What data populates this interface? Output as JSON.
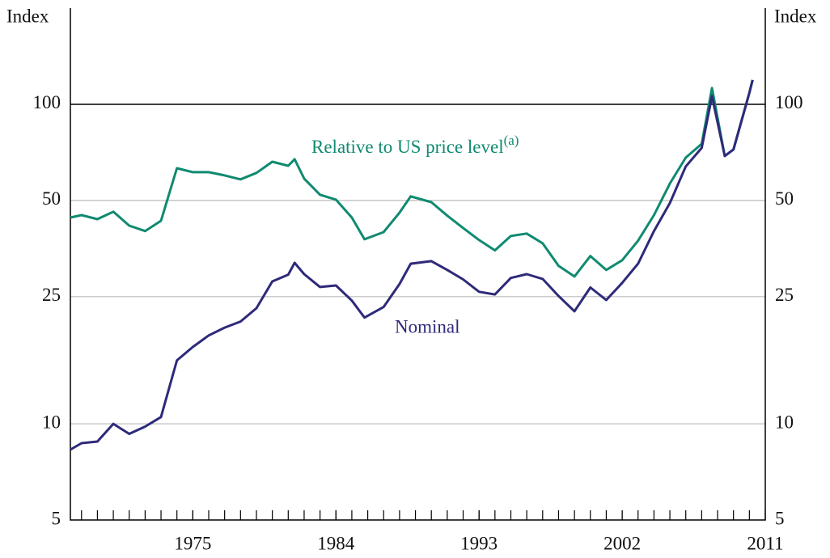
{
  "chart_data": {
    "type": "line",
    "y_axis_label": "Index",
    "y2_axis_label": "Index",
    "annotations": [
      {
        "text": "Relative to US price level",
        "superscript": "(a)"
      },
      {
        "text": "Nominal"
      }
    ],
    "x": [
      1967.3,
      1968,
      1969,
      1970,
      1971,
      1972,
      1973,
      1974,
      1975,
      1976,
      1977,
      1978,
      1979,
      1980,
      1981,
      1981.4,
      1982,
      1983,
      1984,
      1985,
      1985.8,
      1987,
      1988,
      1988.7,
      1990,
      1991,
      1992,
      1993,
      1994,
      1995,
      1996,
      1997,
      1998,
      1999,
      2000,
      2001,
      2002,
      2003,
      2004,
      2005,
      2006,
      2007,
      2007.65,
      2008.45,
      2009,
      2010,
      2010.2
    ],
    "series": [
      {
        "name": "Relative to US price level",
        "color": "#108a70",
        "values": [
          44.2,
          45.0,
          43.7,
          46.1,
          41.7,
          40.1,
          43.2,
          63.1,
          61.3,
          61.3,
          59.9,
          58.2,
          61.0,
          66.1,
          64.2,
          67.3,
          58.5,
          52.1,
          50.3,
          44.2,
          37.8,
          39.8,
          45.8,
          51.5,
          49.4,
          44.8,
          41.0,
          37.6,
          34.9,
          38.7,
          39.4,
          36.7,
          31.2,
          28.9,
          33.5,
          30.3,
          32.5,
          37.4,
          45.0,
          56.5,
          68.1,
          75.2,
          112.4,
          68.9,
          72.2,
          108.5,
          119.1
        ]
      },
      {
        "name": "Nominal",
        "color": "#2e2a7a",
        "values": [
          8.3,
          8.7,
          8.8,
          10.0,
          9.3,
          9.8,
          10.5,
          15.8,
          17.4,
          18.9,
          20.0,
          20.9,
          23.0,
          27.9,
          29.3,
          31.9,
          29.4,
          26.8,
          27.1,
          24.3,
          21.5,
          23.2,
          27.4,
          31.7,
          32.3,
          30.3,
          28.3,
          25.9,
          25.4,
          28.6,
          29.4,
          28.4,
          25.1,
          22.5,
          26.7,
          24.4,
          27.6,
          31.7,
          40.1,
          49.1,
          63.9,
          73.0,
          106.0,
          68.9,
          72.2,
          108.5,
          119.1
        ]
      }
    ],
    "xlim": [
      1967.3,
      2011
    ],
    "xticks": [
      1975,
      1984,
      1993,
      2002,
      2011
    ],
    "xminorticks": [
      1968,
      1969,
      1970,
      1971,
      1972,
      1973,
      1974,
      1975,
      1976,
      1977,
      1978,
      1979,
      1980,
      1981,
      1982,
      1983,
      1984,
      1985,
      1986,
      1987,
      1988,
      1989,
      1990,
      1991,
      1992,
      1993,
      1994,
      1995,
      1996,
      1997,
      1998,
      1999,
      2000,
      2001,
      2002,
      2003,
      2004,
      2005,
      2006,
      2007,
      2008,
      2009,
      2010
    ],
    "ylim": [
      5,
      200
    ],
    "yticks": [
      5,
      10,
      25,
      50,
      100
    ],
    "log_y": true,
    "grid": true,
    "hline": 100
  }
}
